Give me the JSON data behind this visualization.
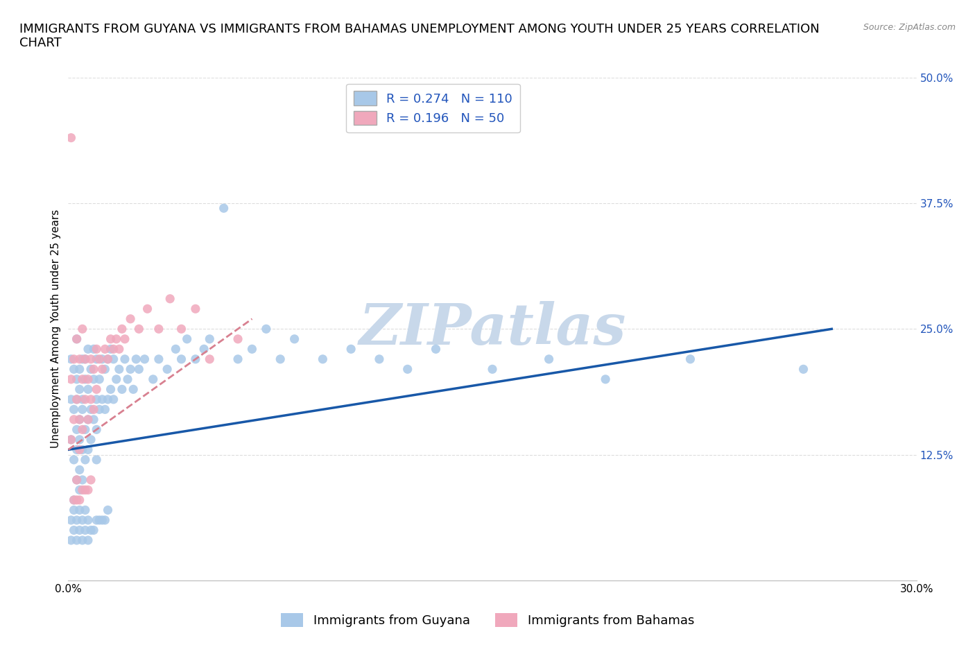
{
  "title": "IMMIGRANTS FROM GUYANA VS IMMIGRANTS FROM BAHAMAS UNEMPLOYMENT AMONG YOUTH UNDER 25 YEARS CORRELATION\nCHART",
  "source": "Source: ZipAtlas.com",
  "ylabel": "Unemployment Among Youth under 25 years",
  "xlim": [
    0.0,
    0.3
  ],
  "ylim": [
    0.0,
    0.5
  ],
  "xticks": [
    0.0,
    0.05,
    0.1,
    0.15,
    0.2,
    0.25,
    0.3
  ],
  "yticks": [
    0.0,
    0.125,
    0.25,
    0.375,
    0.5
  ],
  "xtick_labels": [
    "0.0%",
    "",
    "",
    "",
    "",
    "",
    "30.0%"
  ],
  "ytick_right_labels": [
    "",
    "12.5%",
    "25.0%",
    "37.5%",
    "50.0%"
  ],
  "guyana_color": "#a8c8e8",
  "bahamas_color": "#f0a8bc",
  "guyana_line_color": "#1858a8",
  "bahamas_line_color": "#d88090",
  "R_guyana": 0.274,
  "N_guyana": 110,
  "R_bahamas": 0.196,
  "N_bahamas": 50,
  "watermark": "ZIPatlas",
  "watermark_color": "#c8d8ea",
  "background_color": "#ffffff",
  "title_fontsize": 13,
  "axis_label_fontsize": 11,
  "tick_fontsize": 11,
  "legend_fontsize": 13,
  "guyana_scatter_x": [
    0.001,
    0.001,
    0.001,
    0.002,
    0.002,
    0.002,
    0.002,
    0.003,
    0.003,
    0.003,
    0.003,
    0.003,
    0.003,
    0.004,
    0.004,
    0.004,
    0.004,
    0.004,
    0.004,
    0.005,
    0.005,
    0.005,
    0.005,
    0.005,
    0.006,
    0.006,
    0.006,
    0.006,
    0.007,
    0.007,
    0.007,
    0.007,
    0.008,
    0.008,
    0.008,
    0.009,
    0.009,
    0.009,
    0.01,
    0.01,
    0.01,
    0.01,
    0.011,
    0.011,
    0.012,
    0.012,
    0.013,
    0.013,
    0.014,
    0.014,
    0.015,
    0.015,
    0.016,
    0.016,
    0.017,
    0.018,
    0.019,
    0.02,
    0.021,
    0.022,
    0.023,
    0.024,
    0.025,
    0.027,
    0.03,
    0.032,
    0.035,
    0.038,
    0.04,
    0.042,
    0.045,
    0.048,
    0.05,
    0.055,
    0.06,
    0.065,
    0.07,
    0.075,
    0.08,
    0.09,
    0.1,
    0.11,
    0.12,
    0.13,
    0.15,
    0.17,
    0.19,
    0.22,
    0.26,
    0.001,
    0.001,
    0.002,
    0.002,
    0.003,
    0.003,
    0.004,
    0.004,
    0.005,
    0.005,
    0.006,
    0.006,
    0.007,
    0.007,
    0.008,
    0.009,
    0.01,
    0.011,
    0.012,
    0.013,
    0.014
  ],
  "guyana_scatter_y": [
    0.14,
    0.18,
    0.22,
    0.12,
    0.17,
    0.21,
    0.08,
    0.15,
    0.2,
    0.24,
    0.1,
    0.18,
    0.13,
    0.16,
    0.21,
    0.11,
    0.19,
    0.14,
    0.09,
    0.17,
    0.22,
    0.13,
    0.18,
    0.1,
    0.2,
    0.15,
    0.22,
    0.12,
    0.19,
    0.16,
    0.23,
    0.13,
    0.21,
    0.17,
    0.14,
    0.2,
    0.16,
    0.23,
    0.18,
    0.22,
    0.15,
    0.12,
    0.2,
    0.17,
    0.22,
    0.18,
    0.21,
    0.17,
    0.22,
    0.18,
    0.23,
    0.19,
    0.22,
    0.18,
    0.2,
    0.21,
    0.19,
    0.22,
    0.2,
    0.21,
    0.19,
    0.22,
    0.21,
    0.22,
    0.2,
    0.22,
    0.21,
    0.23,
    0.22,
    0.24,
    0.22,
    0.23,
    0.24,
    0.37,
    0.22,
    0.23,
    0.25,
    0.22,
    0.24,
    0.22,
    0.23,
    0.22,
    0.21,
    0.23,
    0.21,
    0.22,
    0.2,
    0.22,
    0.21,
    0.04,
    0.06,
    0.05,
    0.07,
    0.04,
    0.06,
    0.05,
    0.07,
    0.04,
    0.06,
    0.05,
    0.07,
    0.04,
    0.06,
    0.05,
    0.05,
    0.06,
    0.06,
    0.06,
    0.06,
    0.07
  ],
  "bahamas_scatter_x": [
    0.001,
    0.001,
    0.002,
    0.002,
    0.003,
    0.003,
    0.003,
    0.004,
    0.004,
    0.004,
    0.005,
    0.005,
    0.005,
    0.006,
    0.006,
    0.007,
    0.007,
    0.008,
    0.008,
    0.009,
    0.009,
    0.01,
    0.01,
    0.011,
    0.012,
    0.013,
    0.014,
    0.015,
    0.016,
    0.017,
    0.018,
    0.019,
    0.02,
    0.022,
    0.025,
    0.028,
    0.032,
    0.036,
    0.04,
    0.045,
    0.05,
    0.06,
    0.001,
    0.002,
    0.003,
    0.004,
    0.005,
    0.006,
    0.007,
    0.008
  ],
  "bahamas_scatter_y": [
    0.14,
    0.2,
    0.16,
    0.22,
    0.18,
    0.24,
    0.1,
    0.16,
    0.22,
    0.13,
    0.2,
    0.15,
    0.25,
    0.18,
    0.22,
    0.2,
    0.16,
    0.22,
    0.18,
    0.21,
    0.17,
    0.23,
    0.19,
    0.22,
    0.21,
    0.23,
    0.22,
    0.24,
    0.23,
    0.24,
    0.23,
    0.25,
    0.24,
    0.26,
    0.25,
    0.27,
    0.25,
    0.28,
    0.25,
    0.27,
    0.22,
    0.24,
    0.44,
    0.08,
    0.08,
    0.08,
    0.09,
    0.09,
    0.09,
    0.1
  ],
  "guyana_line_x": [
    0.0,
    0.27
  ],
  "guyana_line_y": [
    0.13,
    0.25
  ],
  "bahamas_line_x": [
    0.0,
    0.065
  ],
  "bahamas_line_y": [
    0.13,
    0.26
  ]
}
